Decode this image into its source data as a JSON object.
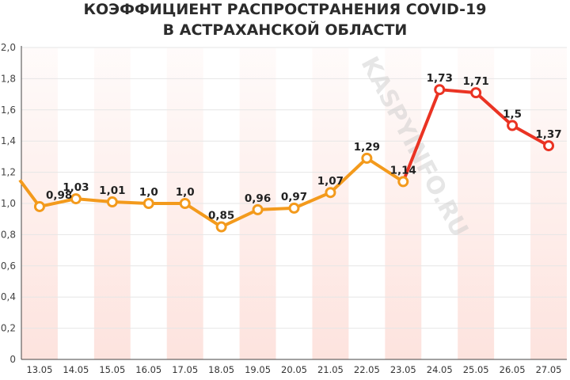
{
  "chart_data": {
    "type": "line",
    "title_line1": "КОЭФФИЦИЕНТ РАСПРОСТРАНЕНИЯ COVID-19",
    "title_line2": "В АСТРАХАНСКОЙ ОБЛАСТИ",
    "watermark": "KASPYINFO.RU",
    "categories": [
      "13.05",
      "14.05",
      "15.05",
      "16.05",
      "17.05",
      "18.05",
      "19.05",
      "20.05",
      "21.05",
      "22.05",
      "23.05",
      "24.05",
      "25.05",
      "26.05",
      "27.05"
    ],
    "values": [
      0.98,
      1.03,
      1.01,
      1.0,
      1.0,
      0.85,
      0.96,
      0.97,
      1.07,
      1.29,
      1.14,
      1.73,
      1.71,
      1.5,
      1.37
    ],
    "value_labels": [
      "0,98",
      "1,03",
      "1,01",
      "1,0",
      "1,0",
      "0,85",
      "0,96",
      "0,97",
      "1,07",
      "1,29",
      "1,14",
      "1,73",
      "1,71",
      "1,5",
      "1,37"
    ],
    "prior_value": 1.15,
    "yticks": [
      0,
      0.2,
      0.4,
      0.6,
      0.8,
      1.0,
      1.2,
      1.4,
      1.6,
      1.8,
      2.0
    ],
    "ytick_labels": [
      "0",
      "0,2",
      "0,4",
      "0,6",
      "0,8",
      "1,0",
      "1,2",
      "1,4",
      "1,6",
      "1,8",
      "2,0"
    ],
    "ylim": [
      0,
      2.0
    ],
    "grid": true,
    "colors": {
      "line_orange": "#f39a1c",
      "line_red": "#ea3323",
      "band": "#fde3de",
      "grid": "#e6e6e6",
      "axis": "#444444"
    }
  }
}
